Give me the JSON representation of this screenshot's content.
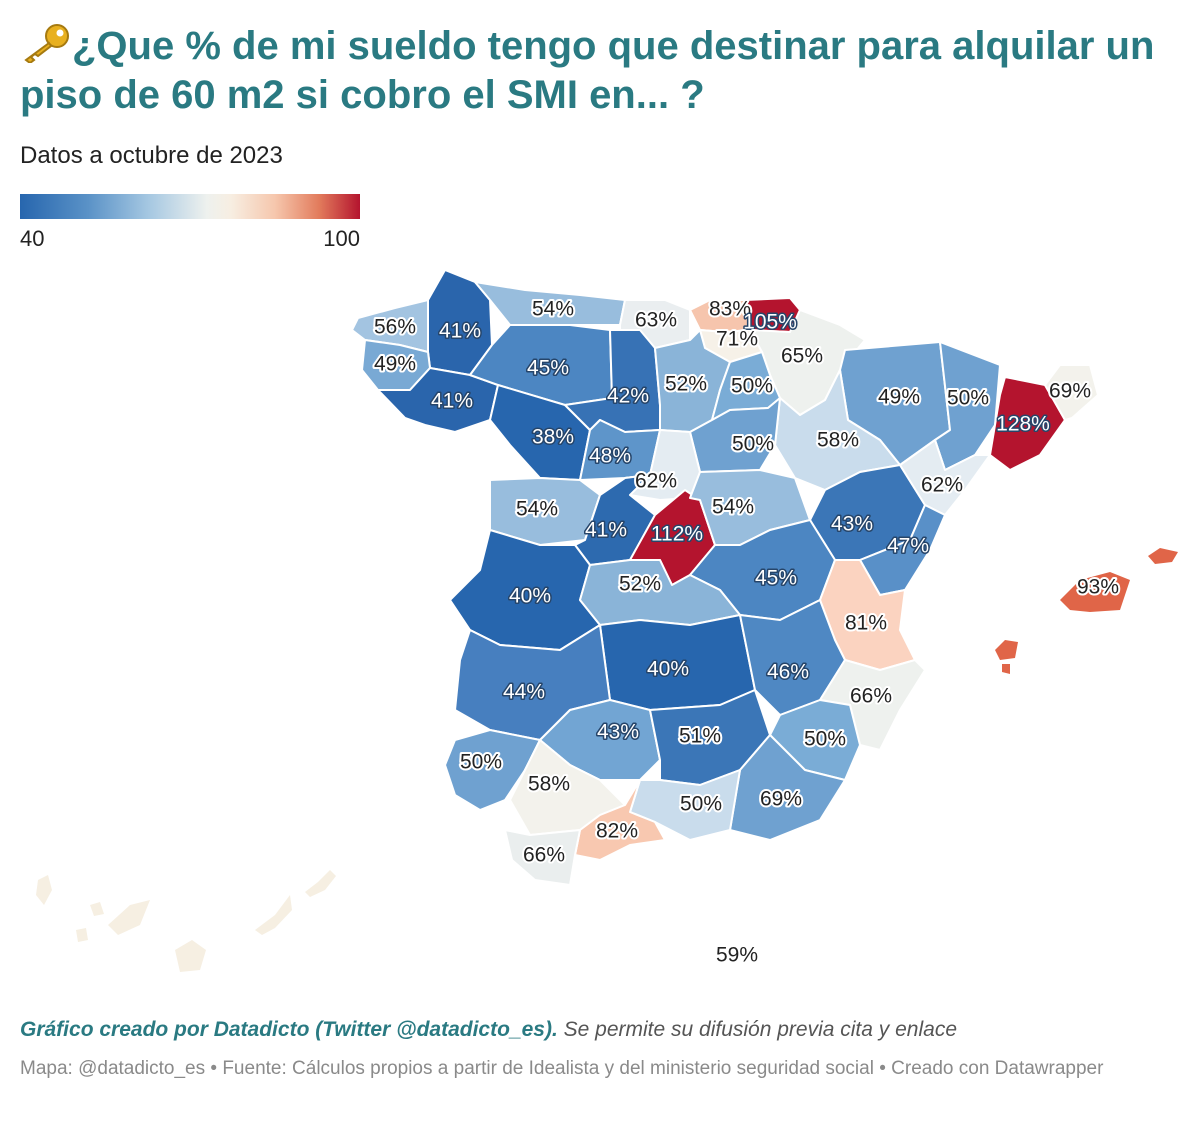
{
  "header": {
    "title": "¿Que % de mi sueldo tengo que destinar para alquilar un piso de 60 m2 si cobro el SMI en... ?",
    "title_icon": "key-icon",
    "subtitle": "Datos a octubre de 2023"
  },
  "legend": {
    "min": "40",
    "max": "100",
    "colors": [
      "#2766ae",
      "#a6c8e2",
      "#eef1ee",
      "#f6c7ad",
      "#b4142e"
    ]
  },
  "regions": [
    {
      "label": "56%",
      "value": 56,
      "fill": "#a3c4e1"
    },
    {
      "label": "41%",
      "value": 41,
      "fill": "#2a65ac"
    },
    {
      "label": "49%",
      "value": 49,
      "fill": "#79a9d4"
    },
    {
      "label": "41%",
      "value": 41,
      "fill": "#2a65ac"
    },
    {
      "label": "54%",
      "value": 54,
      "fill": "#98bddd"
    },
    {
      "label": "45%",
      "value": 45,
      "fill": "#4c86c2"
    },
    {
      "label": "38%",
      "value": 38,
      "fill": "#2766ae"
    },
    {
      "label": "42%",
      "value": 42,
      "fill": "#3772b5"
    },
    {
      "label": "48%",
      "value": 48,
      "fill": "#5e95ca"
    },
    {
      "label": "63%",
      "value": 63,
      "fill": "#eaeef0"
    },
    {
      "label": "83%",
      "value": 83,
      "fill": "#f6c5ad"
    },
    {
      "label": "105%",
      "value": 105,
      "fill": "#b4142e"
    },
    {
      "label": "71%",
      "value": 71,
      "fill": "#f6f1e8"
    },
    {
      "label": "65%",
      "value": 65,
      "fill": "#eef1ee"
    },
    {
      "label": "52%",
      "value": 52,
      "fill": "#8ab4d8"
    },
    {
      "label": "50%",
      "value": 50,
      "fill": "#7aacd6"
    },
    {
      "label": "49%",
      "value": 49,
      "fill": "#6fa1d0"
    },
    {
      "label": "50%",
      "value": 50,
      "fill": "#6fa1d0"
    },
    {
      "label": "128%",
      "value": 128,
      "fill": "#b4142e"
    },
    {
      "label": "69%",
      "value": 69,
      "fill": "#f3f2ec"
    },
    {
      "label": "50%",
      "value": 50,
      "fill": "#6fa1d0"
    },
    {
      "label": "58%",
      "value": 58,
      "fill": "#c9dcec"
    },
    {
      "label": "62%",
      "value": 62,
      "fill": "#e4ecf2"
    },
    {
      "label": "62%",
      "value": 62,
      "fill": "#e4ecf2"
    },
    {
      "label": "54%",
      "value": 54,
      "fill": "#98bddd"
    },
    {
      "label": "41%",
      "value": 41,
      "fill": "#2d6aaf"
    },
    {
      "label": "112%",
      "value": 112,
      "fill": "#b4142e"
    },
    {
      "label": "54%",
      "value": 54,
      "fill": "#98bddd"
    },
    {
      "label": "43%",
      "value": 43,
      "fill": "#3b76b7"
    },
    {
      "label": "47%",
      "value": 47,
      "fill": "#5990c8"
    },
    {
      "label": "40%",
      "value": 40,
      "fill": "#2766ae"
    },
    {
      "label": "52%",
      "value": 52,
      "fill": "#8ab4d8"
    },
    {
      "label": "45%",
      "value": 45,
      "fill": "#4c86c2"
    },
    {
      "label": "81%",
      "value": 81,
      "fill": "#fbd3c0"
    },
    {
      "label": "93%",
      "value": 93,
      "fill": "#e06548"
    },
    {
      "label": "40%",
      "value": 40,
      "fill": "#2766ae"
    },
    {
      "label": "44%",
      "value": 44,
      "fill": "#477fbf"
    },
    {
      "label": "46%",
      "value": 46,
      "fill": "#4f88c3"
    },
    {
      "label": "66%",
      "value": 66,
      "fill": "#eef1ee"
    },
    {
      "label": "50%",
      "value": 50,
      "fill": "#72a5d3"
    },
    {
      "label": "43%",
      "value": 43,
      "fill": "#3b76b7"
    },
    {
      "label": "51%",
      "value": 51,
      "fill": "#7aacd6"
    },
    {
      "label": "50%",
      "value": 50,
      "fill": "#6fa1d0"
    },
    {
      "label": "69%",
      "value": 69,
      "fill": "#f3f2ec"
    },
    {
      "label": "58%",
      "value": 58,
      "fill": "#c9dcec"
    },
    {
      "label": "50%",
      "value": 50,
      "fill": "#6fa1d0"
    },
    {
      "label": "82%",
      "value": 82,
      "fill": "#f8c8b0"
    },
    {
      "label": "66%",
      "value": 66,
      "fill": "#eaeeee"
    },
    {
      "label": "59%",
      "value": 59,
      "fill": "#f6efe2"
    }
  ],
  "footer": {
    "credit_bold": "Gráfico creado por Datadicto (Twitter @datadicto_es).",
    "credit_rest": " Se permite su difusión previa cita y enlace",
    "notes": "Mapa: @datadicto_es • Fuente: Cálculos propios a partir de Idealista y del ministerio seguridad social • Creado con Datawrapper"
  }
}
